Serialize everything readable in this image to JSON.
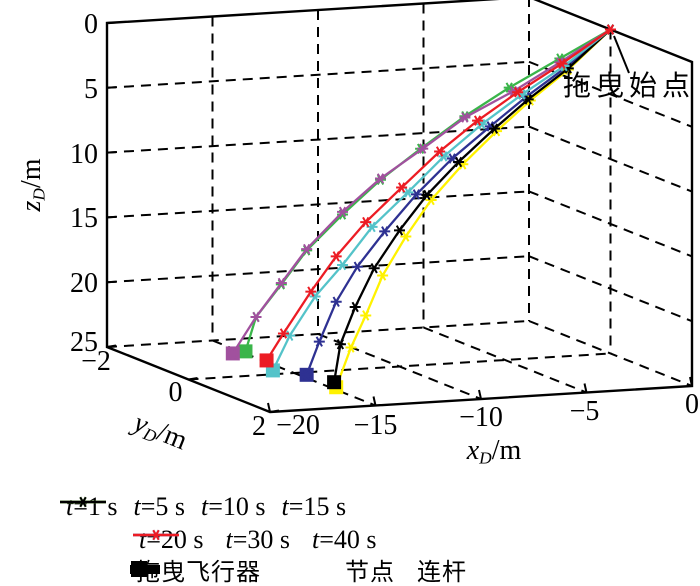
{
  "figure": {
    "axes": {
      "x": {
        "var": "x",
        "sub": "D",
        "unit": "/m",
        "tick_labels": [
          "−20",
          "−15",
          "−10",
          "−5",
          "0"
        ]
      },
      "y": {
        "var": "y",
        "sub": "D",
        "unit": "/m",
        "tick_labels": [
          "−2",
          "0",
          "2"
        ]
      },
      "z": {
        "var": "z",
        "sub": "D",
        "unit": "/m",
        "tick_labels": [
          "0",
          "5",
          "10",
          "15",
          "20",
          "25"
        ]
      }
    },
    "annotation": {
      "label": "拖曳始点"
    }
  },
  "legend": {
    "rows": [
      [
        {
          "label": "t=1 s",
          "color": "#2e3192",
          "marker": "line-asterisk"
        },
        {
          "label": "t=5 s",
          "color": "#fff200",
          "marker": "line-asterisk"
        },
        {
          "label": "t=10 s",
          "color": "#3ab54a",
          "marker": "line-asterisk"
        },
        {
          "label": "t=15 s",
          "color": "#000000",
          "marker": "line-asterisk"
        }
      ],
      [
        {
          "label": "t=20 s",
          "color": "#54c3c9",
          "marker": "line-asterisk"
        },
        {
          "label": "t=30 s",
          "color": "#a1519e",
          "marker": "line-asterisk"
        },
        {
          "label": "t=40 s",
          "color": "#ec1c24",
          "marker": "line-asterisk"
        }
      ],
      [
        {
          "label": "拖曳飞行器",
          "color": "#000000",
          "marker": "square"
        },
        {
          "label": "节点",
          "color": "#000000",
          "marker": "circle"
        },
        {
          "label": "连杆",
          "color": "#000000",
          "marker": "bar"
        }
      ]
    ]
  },
  "chart_data": {
    "type": "line",
    "projection": "3d",
    "title": "",
    "xlabel": "x_D/m",
    "ylabel": "y_D/m",
    "zlabel": "z_D/m",
    "xlim": [
      -20,
      0
    ],
    "ylim": [
      -2,
      2
    ],
    "zlim": [
      0,
      25
    ],
    "zdir": "reversed",
    "grid": true,
    "x_ticks": [
      -20,
      -15,
      -10,
      -5,
      0
    ],
    "y_ticks": [
      -2,
      0,
      2
    ],
    "z_ticks": [
      0,
      5,
      10,
      15,
      20,
      25
    ],
    "start_point": {
      "label": "拖曳始点",
      "x_D": 0,
      "y_D": 0,
      "z_D": 0
    },
    "node_marker": "asterisk",
    "vehicle_marker": "square",
    "series": [
      {
        "name": "t=1 s",
        "color": "#2e3192",
        "y_D": 0,
        "x_D": [
          0,
          -2.1,
          -4.0,
          -5.7,
          -7.5,
          -9.2,
          -10.7,
          -12.0,
          -13.0,
          -13.8,
          -14.4
        ],
        "z_D": [
          0,
          2.7,
          4.8,
          6.9,
          9.2,
          11.8,
          14.5,
          17.1,
          19.7,
          22.7,
          25.2
        ]
      },
      {
        "name": "t=5 s",
        "color": "#fff200",
        "y_D": 0,
        "x_D": [
          0,
          -2.0,
          -3.8,
          -5.4,
          -7.0,
          -8.5,
          -9.7,
          -10.8,
          -11.6,
          -12.3,
          -13.0
        ],
        "z_D": [
          0,
          2.9,
          5.1,
          7.3,
          9.7,
          12.3,
          15.0,
          17.9,
          20.9,
          23.3,
          26.3
        ]
      },
      {
        "name": "t=10 s",
        "color": "#3ab54a",
        "y_D": 0,
        "x_D": [
          0,
          -2.4,
          -4.8,
          -6.9,
          -9.0,
          -10.9,
          -12.7,
          -14.4,
          -15.6,
          -16.8,
          -17.3
        ],
        "z_D": [
          0,
          2.0,
          4.0,
          6.0,
          8.3,
          10.5,
          13.0,
          15.6,
          18.1,
          20.5,
          23.1
        ]
      },
      {
        "name": "t=15 s",
        "color": "#000000",
        "y_D": 0,
        "x_D": [
          0,
          -2.0,
          -3.9,
          -5.5,
          -7.2,
          -8.7,
          -10.0,
          -11.2,
          -12.1,
          -12.8,
          -13.1
        ],
        "z_D": [
          0,
          2.8,
          5.0,
          7.1,
          9.5,
          11.9,
          14.5,
          17.3,
          20.2,
          23.0,
          25.9
        ]
      },
      {
        "name": "t=20 s",
        "color": "#54c3c9",
        "y_D": 0,
        "x_D": [
          0,
          -2.2,
          -4.2,
          -6.1,
          -7.9,
          -9.6,
          -11.3,
          -12.7,
          -14.0,
          -15.2,
          -16.0
        ],
        "z_D": [
          0,
          2.6,
          4.6,
          6.7,
          9.0,
          11.6,
          14.1,
          16.9,
          19.2,
          22.1,
          24.7
        ]
      },
      {
        "name": "t=30 s",
        "color": "#a1519e",
        "y_D": 0,
        "x_D": [
          0,
          -2.4,
          -4.6,
          -6.9,
          -8.9,
          -10.9,
          -12.7,
          -14.4,
          -15.6,
          -16.8,
          -17.9
        ],
        "z_D": [
          0,
          2.3,
          4.3,
          6.1,
          8.3,
          10.4,
          12.8,
          15.5,
          18.0,
          20.5,
          23.2
        ]
      },
      {
        "name": "t=40 s",
        "color": "#ec1c24",
        "y_D": 0,
        "x_D": [
          0,
          -2.3,
          -4.4,
          -6.3,
          -8.1,
          -9.9,
          -11.6,
          -13.0,
          -14.2,
          -15.5,
          -16.3
        ],
        "z_D": [
          0,
          2.4,
          4.4,
          6.4,
          8.6,
          11.2,
          13.7,
          16.2,
          18.8,
          21.9,
          23.9
        ]
      }
    ]
  }
}
